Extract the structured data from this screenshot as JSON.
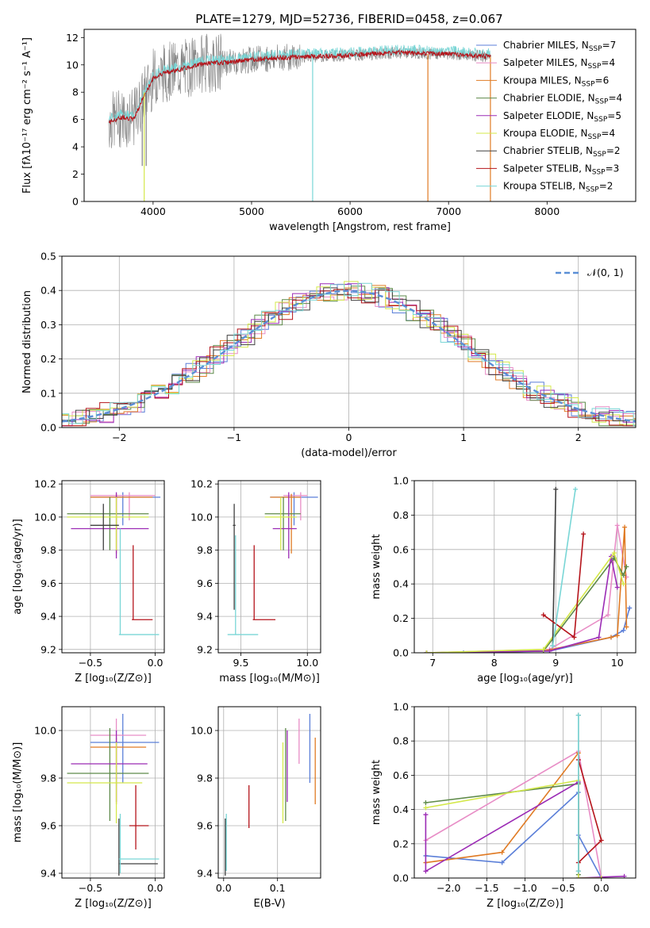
{
  "figure": {
    "title": "PLATE=1279, MJD=52736, FIBERID=0458, z=0.067"
  },
  "series": [
    {
      "name": "Chabrier MILES",
      "nssp": "7",
      "color": "#5b7fd8"
    },
    {
      "name": "Salpeter MILES",
      "nssp": "4",
      "color": "#e88dc6"
    },
    {
      "name": "Kroupa MILES",
      "nssp": "6",
      "color": "#e07b25"
    },
    {
      "name": "Chabrier ELODIE",
      "nssp": "4",
      "color": "#5e8a4a"
    },
    {
      "name": "Salpeter ELODIE",
      "nssp": "5",
      "color": "#9b2bb5"
    },
    {
      "name": "Kroupa ELODIE",
      "nssp": "4",
      "color": "#d4e84a"
    },
    {
      "name": "Chabrier STELIB",
      "nssp": "2",
      "color": "#404040"
    },
    {
      "name": "Salpeter STELIB",
      "nssp": "3",
      "color": "#b5141b"
    },
    {
      "name": "Kroupa STELIB",
      "nssp": "2",
      "color": "#79d6d6"
    }
  ],
  "chart_data": [
    {
      "id": "spectrum",
      "type": "line",
      "xlabel": "wavelength [Angstrom, rest frame]",
      "ylabel": "Flux [fλ10⁻¹⁷ erg cm⁻² s⁻¹ A⁻¹]",
      "xlim": [
        3300,
        8900
      ],
      "ylim": [
        0,
        12.6
      ],
      "xticks": [
        4000,
        5000,
        6000,
        7000,
        8000
      ],
      "yticks": [
        0,
        2,
        4,
        6,
        8,
        10,
        12
      ],
      "data_color": "#808080",
      "model_color": "#b5141b",
      "overlay_color": "#79d6d6",
      "x_range": [
        3550,
        7430
      ],
      "continuum": [
        [
          3550,
          5.8
        ],
        [
          3700,
          6.2
        ],
        [
          3800,
          6.0
        ],
        [
          3900,
          7.6
        ],
        [
          4000,
          9.0
        ],
        [
          4100,
          9.4
        ],
        [
          4300,
          9.7
        ],
        [
          4500,
          10.1
        ],
        [
          4800,
          10.2
        ],
        [
          5000,
          10.4
        ],
        [
          5500,
          10.6
        ],
        [
          6000,
          10.7
        ],
        [
          6500,
          10.9
        ],
        [
          7000,
          10.8
        ],
        [
          7430,
          10.6
        ]
      ],
      "spikes": [
        {
          "x": 3890,
          "y0": 7.0,
          "y1": 2.6,
          "color": "#808080"
        },
        {
          "x": 3910,
          "y0": 8.0,
          "y1": 0.0,
          "color": "#d4e84a"
        },
        {
          "x": 3930,
          "y0": 8.0,
          "y1": 2.6,
          "color": "#808080"
        },
        {
          "x": 5620,
          "y0": 10.5,
          "y1": 0.0,
          "color": "#79d6d6"
        },
        {
          "x": 6790,
          "y0": 10.8,
          "y1": 0.0,
          "color": "#e07b25"
        },
        {
          "x": 7425,
          "y0": 10.6,
          "y1": 0.0,
          "color": "#e07b25"
        }
      ]
    },
    {
      "id": "residual-histogram",
      "type": "line",
      "xlabel": "(data-model)/error",
      "ylabel": "Normed distribution",
      "xlim": [
        -2.5,
        2.5
      ],
      "ylim": [
        0,
        0.5
      ],
      "xticks": [
        -2,
        -1,
        0,
        1,
        2
      ],
      "yticks": [
        0.0,
        0.1,
        0.2,
        0.3,
        0.4,
        0.5
      ],
      "legend": "𝒩(0, 1)",
      "legend_position": "top-right",
      "bin_width": 0.12,
      "gaussian": {
        "mean": 0,
        "sigma": 1,
        "color": "#5b8fd6"
      }
    },
    {
      "id": "age-vs-metallicity",
      "type": "scatter",
      "xlabel": "Z [log₁₀(Z/Z⊙)]",
      "ylabel": "age [log₁₀(age/yr)]",
      "xlim": [
        -0.72,
        0.07
      ],
      "ylim": [
        9.18,
        10.22
      ],
      "xticks": [
        -0.5,
        0.0
      ],
      "yticks": [
        9.2,
        9.4,
        9.6,
        9.8,
        10.0,
        10.2
      ],
      "points": [
        {
          "s": 0,
          "x": -0.25,
          "y": 10.12,
          "ex": [
            -0.5,
            0.04
          ],
          "ey": [
            9.95,
            10.15
          ]
        },
        {
          "s": 1,
          "x": -0.2,
          "y": 10.13,
          "ex": [
            -0.5,
            0.0
          ],
          "ey": [
            9.98,
            10.15
          ]
        },
        {
          "s": 2,
          "x": -0.3,
          "y": 10.12,
          "ex": [
            -0.5,
            -0.02
          ],
          "ey": [
            9.78,
            10.14
          ]
        },
        {
          "s": 3,
          "x": -0.35,
          "y": 10.02,
          "ex": [
            -0.68,
            -0.05
          ],
          "ey": [
            9.8,
            10.12
          ]
        },
        {
          "s": 4,
          "x": -0.3,
          "y": 9.93,
          "ex": [
            -0.65,
            -0.05
          ],
          "ey": [
            9.75,
            10.15
          ]
        },
        {
          "s": 5,
          "x": -0.3,
          "y": 10.0,
          "ex": [
            -0.68,
            -0.05
          ],
          "ey": [
            9.8,
            10.12
          ]
        },
        {
          "s": 6,
          "x": -0.4,
          "y": 9.95,
          "ex": [
            -0.5,
            -0.28
          ],
          "ey": [
            9.8,
            10.08
          ]
        },
        {
          "s": 7,
          "x": -0.17,
          "y": 9.38,
          "ex": [
            -0.18,
            -0.02
          ],
          "ey": [
            9.38,
            9.83
          ]
        },
        {
          "s": 8,
          "x": -0.27,
          "y": 9.29,
          "ex": [
            -0.28,
            0.03
          ],
          "ey": [
            9.29,
            9.93
          ]
        }
      ]
    },
    {
      "id": "age-vs-mass",
      "type": "scatter",
      "xlabel": "mass [log₁₀(M/M⊙)]",
      "ylabel": "",
      "xlim": [
        9.33,
        10.1
      ],
      "ylim": [
        9.18,
        10.22
      ],
      "xticks": [
        9.5,
        10.0
      ],
      "yticks": [
        9.2,
        9.4,
        9.6,
        9.8,
        10.0,
        10.2
      ],
      "points": [
        {
          "s": 0,
          "x": 9.9,
          "y": 10.12,
          "ex": [
            9.72,
            10.08
          ],
          "ey": [
            9.95,
            10.15
          ]
        },
        {
          "s": 1,
          "x": 9.95,
          "y": 10.13,
          "ex": [
            9.82,
            10.0
          ],
          "ey": [
            9.98,
            10.15
          ]
        },
        {
          "s": 2,
          "x": 9.88,
          "y": 10.12,
          "ex": [
            9.72,
            9.95
          ],
          "ey": [
            9.78,
            10.14
          ]
        },
        {
          "s": 3,
          "x": 9.82,
          "y": 10.02,
          "ex": [
            9.68,
            9.95
          ],
          "ey": [
            9.8,
            10.12
          ]
        },
        {
          "s": 4,
          "x": 9.86,
          "y": 9.93,
          "ex": [
            9.74,
            9.92
          ],
          "ey": [
            9.75,
            10.15
          ]
        },
        {
          "s": 5,
          "x": 9.8,
          "y": 10.0,
          "ex": [
            9.68,
            9.92
          ],
          "ey": [
            9.8,
            10.12
          ]
        },
        {
          "s": 6,
          "x": 9.45,
          "y": 9.95,
          "ex": [
            9.44,
            9.46
          ],
          "ey": [
            9.44,
            10.08
          ]
        },
        {
          "s": 7,
          "x": 9.6,
          "y": 9.38,
          "ex": [
            9.59,
            9.76
          ],
          "ey": [
            9.38,
            9.83
          ]
        },
        {
          "s": 8,
          "x": 9.46,
          "y": 9.29,
          "ex": [
            9.4,
            9.63
          ],
          "ey": [
            9.29,
            9.89
          ]
        }
      ]
    },
    {
      "id": "weight-vs-age",
      "type": "line",
      "xlabel": "age [log₁₀(age/yr)]",
      "ylabel": "mass weight",
      "xlim": [
        6.7,
        10.3
      ],
      "ylim": [
        0,
        1.0
      ],
      "xticks": [
        7,
        8,
        9,
        10
      ],
      "yticks": [
        0.0,
        0.2,
        0.4,
        0.6,
        0.8,
        1.0
      ],
      "lines": [
        {
          "s": 0,
          "x": [
            6.9,
            7.5,
            8.9,
            9.9,
            10.1,
            10.2
          ],
          "y": [
            0.0,
            0.0,
            0.01,
            0.09,
            0.13,
            0.26
          ]
        },
        {
          "s": 1,
          "x": [
            6.9,
            8.9,
            9.85,
            10.0,
            10.15
          ],
          "y": [
            0.0,
            0.02,
            0.22,
            0.74,
            0.44
          ]
        },
        {
          "s": 2,
          "x": [
            6.9,
            8.8,
            9.9,
            10.0,
            10.12,
            10.15
          ],
          "y": [
            0.0,
            0.01,
            0.09,
            0.1,
            0.73,
            0.15
          ]
        },
        {
          "s": 3,
          "x": [
            6.9,
            8.8,
            9.95,
            10.1,
            10.15
          ],
          "y": [
            0.0,
            0.01,
            0.55,
            0.45,
            0.5
          ]
        },
        {
          "s": 4,
          "x": [
            6.9,
            8.9,
            9.7,
            9.9,
            10.0
          ],
          "y": [
            0.0,
            0.01,
            0.09,
            0.56,
            0.38
          ]
        },
        {
          "s": 5,
          "x": [
            6.9,
            8.8,
            9.95,
            10.1
          ],
          "y": [
            0.0,
            0.02,
            0.58,
            0.4
          ]
        },
        {
          "s": 6,
          "x": [
            8.95,
            9.0
          ],
          "y": [
            0.04,
            0.95
          ]
        },
        {
          "s": 7,
          "x": [
            8.8,
            9.3,
            9.45
          ],
          "y": [
            0.22,
            0.09,
            0.69
          ]
        },
        {
          "s": 8,
          "x": [
            8.95,
            9.32
          ],
          "y": [
            0.04,
            0.95
          ]
        }
      ]
    },
    {
      "id": "mass-vs-metallicity",
      "type": "scatter",
      "xlabel": "Z [log₁₀(Z/Z⊙)]",
      "ylabel": "mass [log₁₀(M/M⊙)]",
      "xlim": [
        -0.72,
        0.07
      ],
      "ylim": [
        9.38,
        10.1
      ],
      "xticks": [
        -0.5,
        0.0
      ],
      "yticks": [
        9.4,
        9.6,
        9.8,
        10.0
      ],
      "points": [
        {
          "s": 0,
          "x": -0.25,
          "y": 9.95,
          "ex": [
            -0.5,
            0.03
          ],
          "ey": [
            9.78,
            10.07
          ]
        },
        {
          "s": 1,
          "x": -0.3,
          "y": 9.98,
          "ex": [
            -0.5,
            -0.07
          ],
          "ey": [
            9.86,
            10.05
          ]
        },
        {
          "s": 2,
          "x": -0.3,
          "y": 9.93,
          "ex": [
            -0.5,
            -0.07
          ],
          "ey": [
            9.69,
            9.97
          ]
        },
        {
          "s": 3,
          "x": -0.35,
          "y": 9.82,
          "ex": [
            -0.68,
            -0.05
          ],
          "ey": [
            9.62,
            10.01
          ]
        },
        {
          "s": 4,
          "x": -0.3,
          "y": 9.86,
          "ex": [
            -0.65,
            -0.06
          ],
          "ey": [
            9.7,
            10.0
          ]
        },
        {
          "s": 5,
          "x": -0.3,
          "y": 9.78,
          "ex": [
            -0.68,
            -0.1
          ],
          "ey": [
            9.61,
            9.95
          ]
        },
        {
          "s": 6,
          "x": -0.28,
          "y": 9.44,
          "ex": [
            -0.28,
            0.02
          ],
          "ey": [
            9.39,
            9.63
          ]
        },
        {
          "s": 7,
          "x": -0.15,
          "y": 9.6,
          "ex": [
            -0.2,
            -0.05
          ],
          "ey": [
            9.5,
            9.77
          ]
        },
        {
          "s": 8,
          "x": -0.27,
          "y": 9.46,
          "ex": [
            -0.28,
            0.03
          ],
          "ey": [
            9.4,
            9.65
          ]
        }
      ]
    },
    {
      "id": "mass-vs-extinction",
      "type": "scatter",
      "xlabel": "E(B-V)",
      "ylabel": "",
      "xlim": [
        -0.01,
        0.18
      ],
      "ylim": [
        9.38,
        10.1
      ],
      "xticks": [
        0.0,
        0.1
      ],
      "yticks": [
        9.4,
        9.6,
        9.8,
        10.0
      ],
      "points": [
        {
          "s": 0,
          "x": 0.16,
          "ey": [
            9.78,
            10.07
          ]
        },
        {
          "s": 1,
          "x": 0.14,
          "ey": [
            9.86,
            10.05
          ]
        },
        {
          "s": 2,
          "x": 0.17,
          "ey": [
            9.69,
            9.97
          ]
        },
        {
          "s": 3,
          "x": 0.115,
          "ey": [
            9.62,
            10.01
          ]
        },
        {
          "s": 4,
          "x": 0.118,
          "ey": [
            9.7,
            10.0
          ]
        },
        {
          "s": 5,
          "x": 0.11,
          "ey": [
            9.61,
            9.95
          ]
        },
        {
          "s": 6,
          "x": 0.003,
          "ey": [
            9.39,
            9.63
          ]
        },
        {
          "s": 7,
          "x": 0.047,
          "ey": [
            9.59,
            9.77
          ]
        },
        {
          "s": 8,
          "x": 0.005,
          "ey": [
            9.41,
            9.65
          ]
        }
      ]
    },
    {
      "id": "weight-vs-metallicity",
      "type": "line",
      "xlabel": "Z [log₁₀(Z/Z⊙)]",
      "ylabel": "mass weight",
      "xlim": [
        -2.45,
        0.45
      ],
      "ylim": [
        0,
        1.0
      ],
      "xticks": [
        -2.0,
        -1.5,
        -1.0,
        -0.5,
        0.0
      ],
      "yticks": [
        0.0,
        0.2,
        0.4,
        0.6,
        0.8,
        1.0
      ],
      "lines": [
        {
          "s": 0,
          "x": [
            -2.3,
            -1.3,
            -0.3,
            -0.3,
            0.0
          ],
          "y": [
            0.13,
            0.09,
            0.5,
            0.25,
            0.0
          ]
        },
        {
          "s": 1,
          "x": [
            -2.3,
            -0.3,
            0.0
          ],
          "y": [
            0.22,
            0.74,
            0.0
          ]
        },
        {
          "s": 2,
          "x": [
            -2.3,
            -1.3,
            -0.3,
            -0.3,
            0.0
          ],
          "y": [
            0.09,
            0.15,
            0.73,
            0.0,
            0.0
          ]
        },
        {
          "s": 3,
          "x": [
            -2.3,
            -0.3,
            -0.3
          ],
          "y": [
            0.44,
            0.55,
            0.02
          ]
        },
        {
          "s": 4,
          "x": [
            -2.3,
            -2.3,
            -0.3,
            -0.3,
            0.3
          ],
          "y": [
            0.37,
            0.04,
            0.56,
            0.0,
            0.01
          ]
        },
        {
          "s": 5,
          "x": [
            -2.3,
            -0.3,
            -0.3,
            0.0
          ],
          "y": [
            0.41,
            0.57,
            0.0,
            0.0
          ]
        },
        {
          "s": 6,
          "x": [
            -0.3,
            -0.3
          ],
          "y": [
            0.04,
            0.95
          ]
        },
        {
          "s": 7,
          "x": [
            -0.3,
            0.0,
            -0.3
          ],
          "y": [
            0.09,
            0.22,
            0.69
          ]
        },
        {
          "s": 8,
          "x": [
            -0.3,
            -0.3
          ],
          "y": [
            0.04,
            0.95
          ]
        }
      ]
    }
  ]
}
